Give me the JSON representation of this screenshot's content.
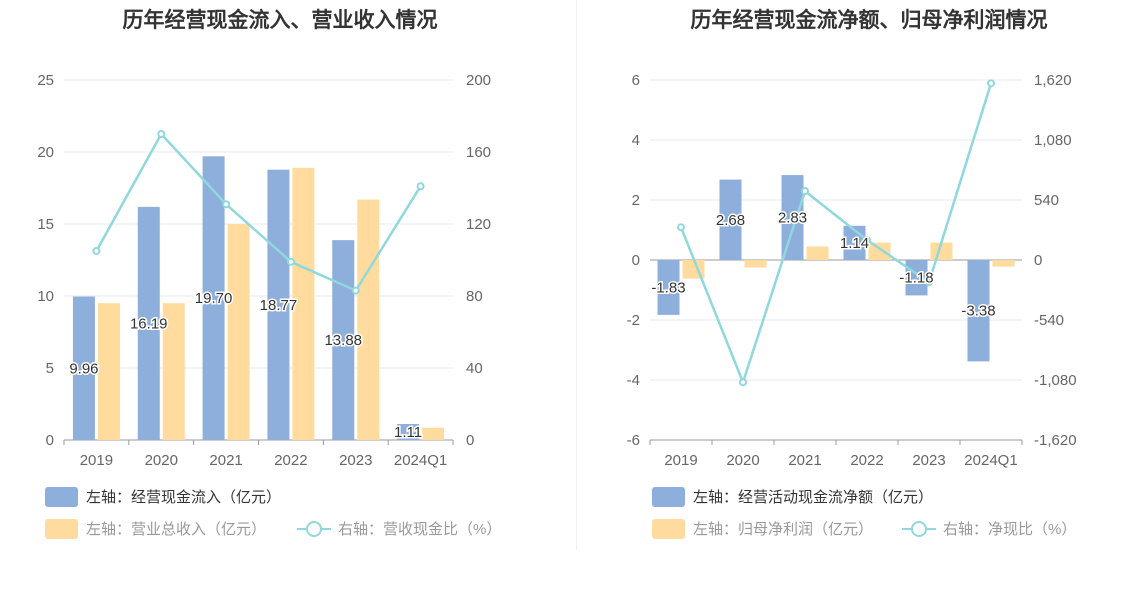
{
  "colors": {
    "bar1": "#8eaedb",
    "bar2": "#ffdb9e",
    "line": "#8fd8dd",
    "grid": "#e6e9f0",
    "axis": "#999999"
  },
  "chart_data": [
    {
      "type": "bar",
      "title": "历年经营现金流入、营业收入情况",
      "categories": [
        "2019",
        "2020",
        "2021",
        "2022",
        "2023",
        "2024Q1"
      ],
      "left_axis": {
        "ylim": [
          0,
          25
        ],
        "ticks": [
          "0",
          "5",
          "10",
          "15",
          "20",
          "25"
        ]
      },
      "right_axis": {
        "ylim": [
          0,
          200
        ],
        "ticks": [
          "0",
          "40",
          "80",
          "120",
          "160",
          "200"
        ]
      },
      "series": [
        {
          "name": "左轴：经营现金流入（亿元）",
          "axis": "left",
          "kind": "bar",
          "values": [
            9.96,
            16.19,
            19.7,
            18.77,
            13.88,
            1.11
          ],
          "labels": [
            "9.96",
            "16.19",
            "19.70",
            "18.77",
            "13.88",
            "1.11"
          ]
        },
        {
          "name": "左轴：营业总收入（亿元）",
          "axis": "left",
          "kind": "bar",
          "values": [
            9.5,
            9.5,
            15.0,
            18.9,
            16.7,
            0.85
          ]
        },
        {
          "name": "右轴：营收现金比（%）",
          "axis": "right",
          "kind": "line",
          "values": [
            105,
            170,
            131,
            99,
            83,
            141
          ]
        }
      ]
    },
    {
      "type": "bar",
      "title": "历年经营现金流净额、归母净利润情况",
      "categories": [
        "2019",
        "2020",
        "2021",
        "2022",
        "2023",
        "2024Q1"
      ],
      "left_axis": {
        "ylim": [
          -6,
          6
        ],
        "ticks": [
          "-6",
          "-4",
          "-2",
          "0",
          "2",
          "4",
          "6"
        ]
      },
      "right_axis": {
        "ylim": [
          -1620,
          1620
        ],
        "ticks": [
          "-1,620",
          "-1,080",
          "-540",
          "0",
          "540",
          "1,080",
          "1,620"
        ]
      },
      "series": [
        {
          "name": "左轴：经营活动现金流净额（亿元）",
          "axis": "left",
          "kind": "bar",
          "values": [
            -1.83,
            2.68,
            2.83,
            1.14,
            -1.18,
            -3.38
          ],
          "labels": [
            "-1.83",
            "2.68",
            "2.83",
            "1.14",
            "-1.18",
            "-3.38"
          ]
        },
        {
          "name": "左轴：归母净利润（亿元）",
          "axis": "left",
          "kind": "bar",
          "values": [
            -0.62,
            -0.25,
            0.45,
            0.58,
            0.58,
            -0.22
          ]
        },
        {
          "name": "右轴：净现比（%）",
          "axis": "right",
          "kind": "line",
          "values": [
            295,
            -1100,
            620,
            180,
            -200,
            1590
          ]
        }
      ]
    }
  ]
}
